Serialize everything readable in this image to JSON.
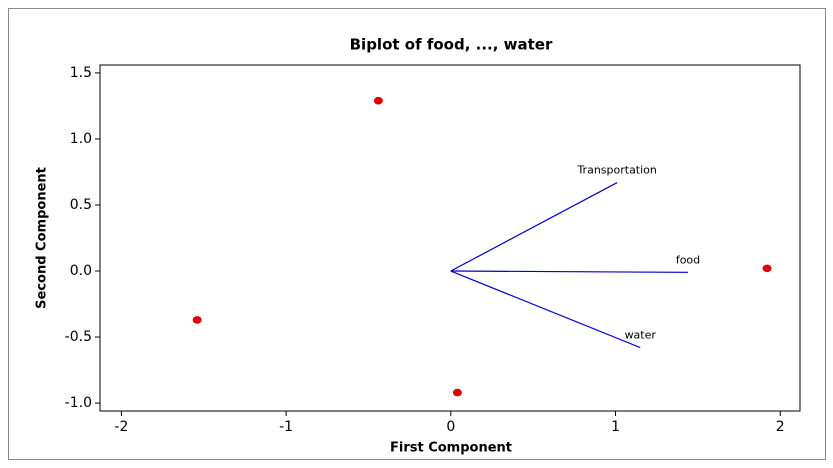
{
  "chart_data": {
    "type": "scatter",
    "title": "Biplot of food, ..., water",
    "xlabel": "First Component",
    "ylabel": "Second Component",
    "series": [
      {
        "color": "#e00000",
        "x": [
          -0.44,
          -1.54,
          0.04,
          1.92
        ],
        "values": [
          1.29,
          -0.37,
          -0.92,
          0.02
        ]
      }
    ],
    "vectors": [
      {
        "label": "Transportation",
        "x": 1.01,
        "y": 0.67
      },
      {
        "label": "food",
        "x": 1.44,
        "y": -0.01
      },
      {
        "label": "water",
        "x": 1.15,
        "y": -0.58
      }
    ],
    "vector_color": "#0000cc",
    "xlim": [
      -2.13,
      2.12
    ],
    "xticks": [
      -2,
      -1,
      0,
      1,
      2
    ],
    "ylim": [
      -1.06,
      1.56
    ],
    "yticks": [
      {
        "value": -1,
        "label": "-1.0"
      },
      -0.5,
      {
        "value": 0,
        "label": "0.0"
      },
      0.5,
      {
        "value": 1,
        "label": "1.0"
      },
      1.5
    ]
  }
}
